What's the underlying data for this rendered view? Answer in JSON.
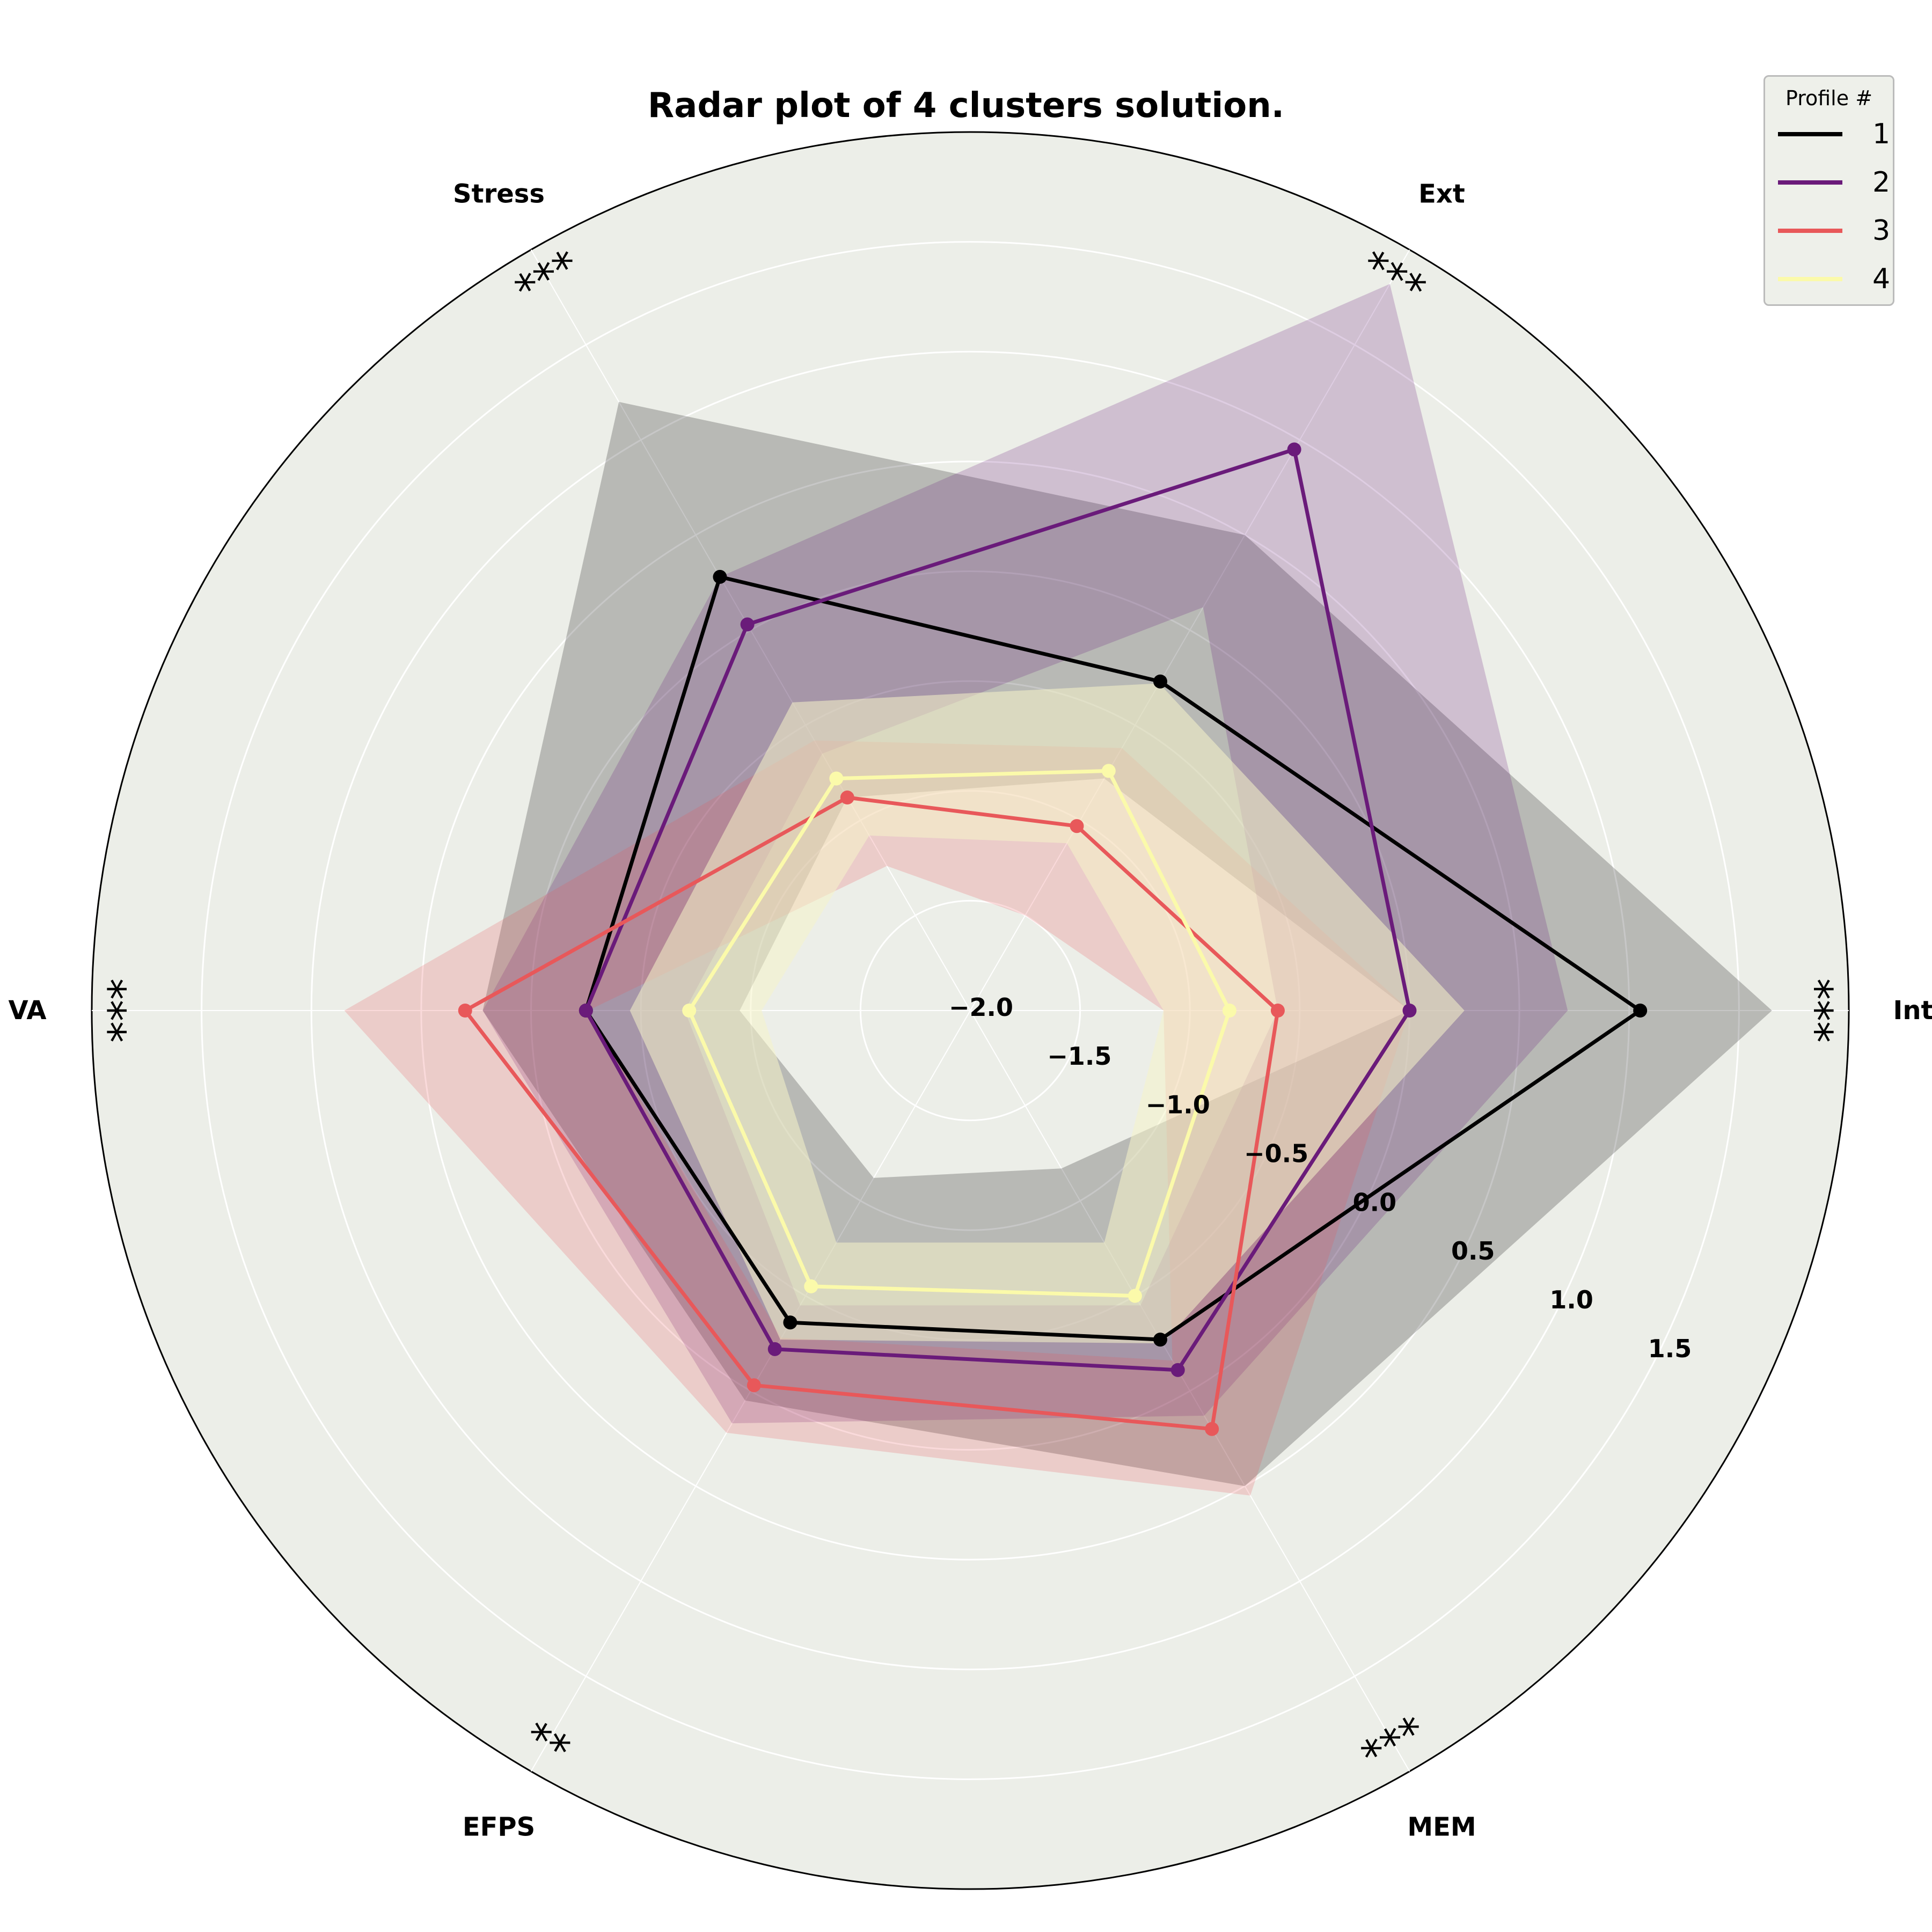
{
  "chart_data": {
    "type": "radar",
    "title": "Radar plot of 4 clusters solution.",
    "axes": [
      "Int",
      "Ext",
      "Stress",
      "VA",
      "EFPS",
      "MEM"
    ],
    "significance": [
      "***",
      "***",
      "***",
      "***",
      "**",
      "***"
    ],
    "rlim": [
      -2.0,
      2.0
    ],
    "rticks": [
      "−2.0",
      "−1.5",
      "−1.0",
      "−0.5",
      "0.0",
      "0.5",
      "1.0",
      "1.5"
    ],
    "rtick_values": [
      -2.0,
      -1.5,
      -1.0,
      -0.5,
      0.0,
      0.5,
      1.0,
      1.5
    ],
    "grid": true,
    "legend": {
      "title": "Profile #",
      "position": "top-right"
    },
    "series": [
      {
        "name": "1",
        "color": "#000000",
        "values": [
          1.05,
          -0.27,
          0.28,
          -0.25,
          -0.36,
          -0.27
        ],
        "upper": [
          1.65,
          0.5,
          1.2,
          0.22,
          0.05,
          0.5
        ],
        "lower": [
          0.0,
          -0.78,
          -0.88,
          -0.95,
          -1.12,
          -1.17
        ]
      },
      {
        "name": "2",
        "color": "#6a1b7a",
        "values": [
          0.0,
          0.95,
          0.03,
          -0.25,
          -0.22,
          -0.11
        ],
        "upper": [
          0.72,
          1.82,
          0.28,
          0.22,
          0.17,
          0.13
        ],
        "lower": [
          -0.6,
          0.12,
          -0.65,
          -0.7,
          -0.45,
          -0.45
        ]
      },
      {
        "name": "3",
        "color": "#e8585a",
        "values": [
          -0.6,
          -1.03,
          -0.88,
          0.3,
          -0.03,
          0.2
        ],
        "upper": [
          0.0,
          -0.62,
          -0.58,
          0.85,
          0.22,
          0.55
        ],
        "lower": [
          -1.12,
          -1.5,
          -1.24,
          -0.26,
          -0.28,
          -0.16
        ]
      },
      {
        "name": "4",
        "color": "#fbfaaa",
        "values": [
          -0.82,
          -0.74,
          -0.78,
          -0.72,
          -0.55,
          -0.5
        ],
        "upper": [
          0.25,
          -0.28,
          -0.38,
          -0.45,
          -0.27,
          -0.25
        ],
        "lower": [
          -1.12,
          -1.12,
          -1.08,
          -1.05,
          -0.78,
          -0.78
        ]
      }
    ]
  }
}
